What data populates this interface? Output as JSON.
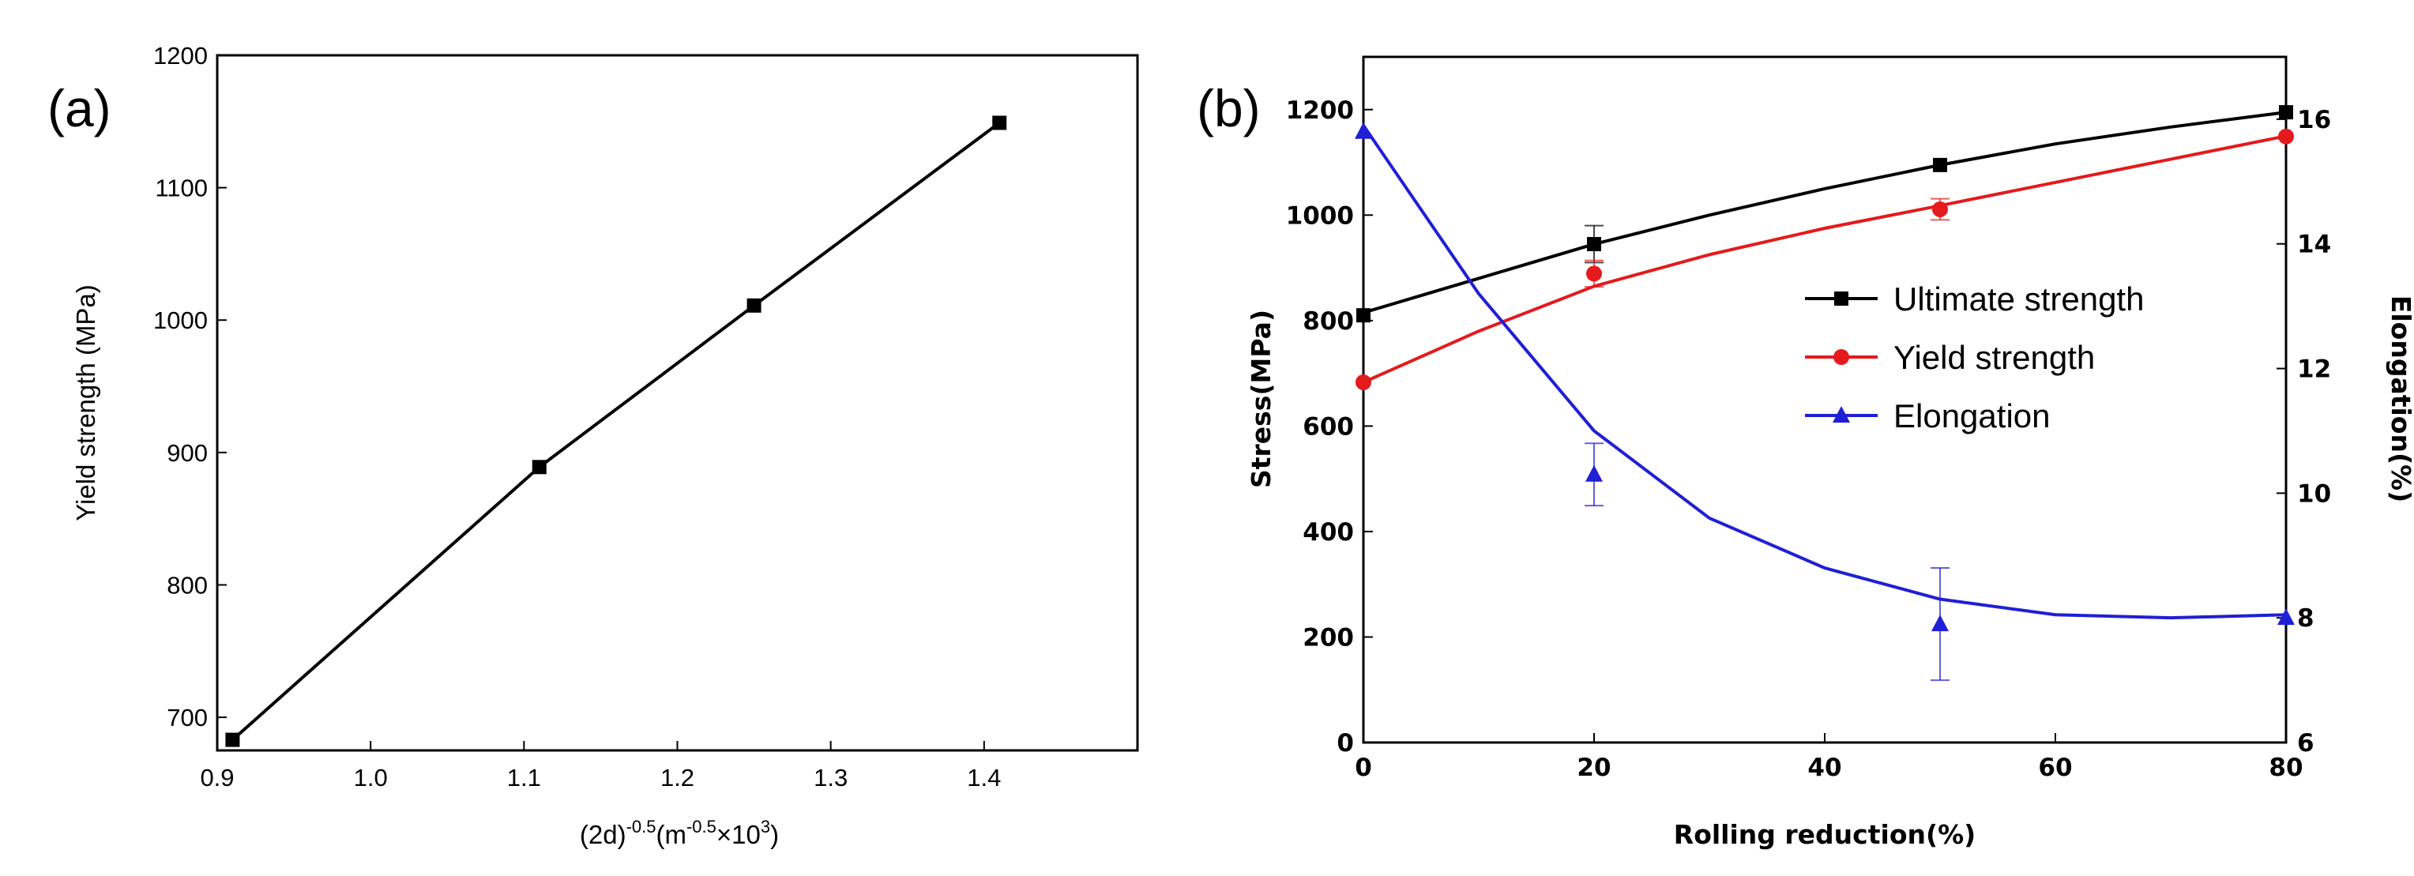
{
  "chart_data": [
    {
      "panel": "(a)",
      "type": "line",
      "title": "",
      "xlabel": "(2d)",
      "xlabel_sup1": "-0.5",
      "xlabel_mid": "(m",
      "xlabel_sup2": "-0.5",
      "xlabel_tail": "×10",
      "xlabel_sup3": "3",
      "xlabel_end": ")",
      "ylabel": "Yield strength (MPa)",
      "xlim": [
        0.9,
        1.5
      ],
      "ylim": [
        675,
        1200
      ],
      "xticks": [
        0.9,
        1.0,
        1.1,
        1.2,
        1.3,
        1.4
      ],
      "xtick_labels": [
        "0.9",
        "1.0",
        "1.1",
        "1.2",
        "1.3",
        "1.4"
      ],
      "yticks": [
        700,
        800,
        900,
        1000,
        1100,
        1200
      ],
      "ytick_labels": [
        "700",
        "800",
        "900",
        "1000",
        "1100",
        "1200"
      ],
      "series": [
        {
          "name": "Yield strength",
          "color": "#000000",
          "marker": "square",
          "x": [
            0.91,
            1.11,
            1.25,
            1.41
          ],
          "y": [
            683,
            889,
            1011,
            1149
          ]
        }
      ]
    },
    {
      "panel": "(b)",
      "type": "line",
      "title": "",
      "xlabel": "Rolling reduction(%)",
      "ylabel": "Stress(MPa)",
      "y2label": "Elongation(%)",
      "xlim": [
        0,
        80
      ],
      "ylim": [
        0,
        1300
      ],
      "y2lim": [
        6,
        17
      ],
      "xticks": [
        0,
        20,
        40,
        60,
        80
      ],
      "xtick_labels": [
        "0",
        "20",
        "40",
        "60",
        "80"
      ],
      "yticks": [
        0,
        200,
        400,
        600,
        800,
        1000,
        1200
      ],
      "ytick_labels": [
        "0",
        "200",
        "400",
        "600",
        "800",
        "1000",
        "1200"
      ],
      "y2ticks": [
        6,
        8,
        10,
        12,
        14,
        16
      ],
      "y2tick_labels": [
        "6",
        "8",
        "10",
        "12",
        "14",
        "16"
      ],
      "legend_position": "center-right",
      "series": [
        {
          "name": "Ultimate strength",
          "color": "#000000",
          "marker": "square",
          "axis": "left",
          "x": [
            0,
            20,
            50,
            80
          ],
          "y": [
            810,
            945,
            1095,
            1195
          ],
          "err": [
            0,
            35,
            0,
            0
          ],
          "fit_x": [
            0,
            10,
            20,
            30,
            40,
            50,
            60,
            70,
            80
          ],
          "fit_y": [
            815,
            880,
            945,
            1000,
            1050,
            1095,
            1135,
            1167,
            1195
          ]
        },
        {
          "name": "Yield strength",
          "color": "#e41a1c",
          "marker": "circle",
          "axis": "left",
          "x": [
            0,
            20,
            50,
            80
          ],
          "y": [
            683,
            889,
            1011,
            1149
          ],
          "err": [
            0,
            25,
            20,
            0
          ],
          "fit_x": [
            0,
            10,
            20,
            30,
            40,
            50,
            60,
            70,
            80
          ],
          "fit_y": [
            683,
            780,
            865,
            925,
            975,
            1018,
            1062,
            1106,
            1150
          ]
        },
        {
          "name": "Elongation",
          "color": "#1f1fd6",
          "marker": "triangle",
          "axis": "right",
          "x": [
            0,
            20,
            50,
            80
          ],
          "y": [
            15.8,
            10.3,
            7.9,
            8.0
          ],
          "err": [
            0,
            0.5,
            0.9,
            0
          ],
          "fit_x": [
            0,
            10,
            20,
            30,
            40,
            50,
            60,
            70,
            80
          ],
          "fit_y": [
            15.9,
            13.2,
            11.0,
            9.6,
            8.8,
            8.3,
            8.05,
            8.0,
            8.05
          ]
        }
      ]
    }
  ]
}
